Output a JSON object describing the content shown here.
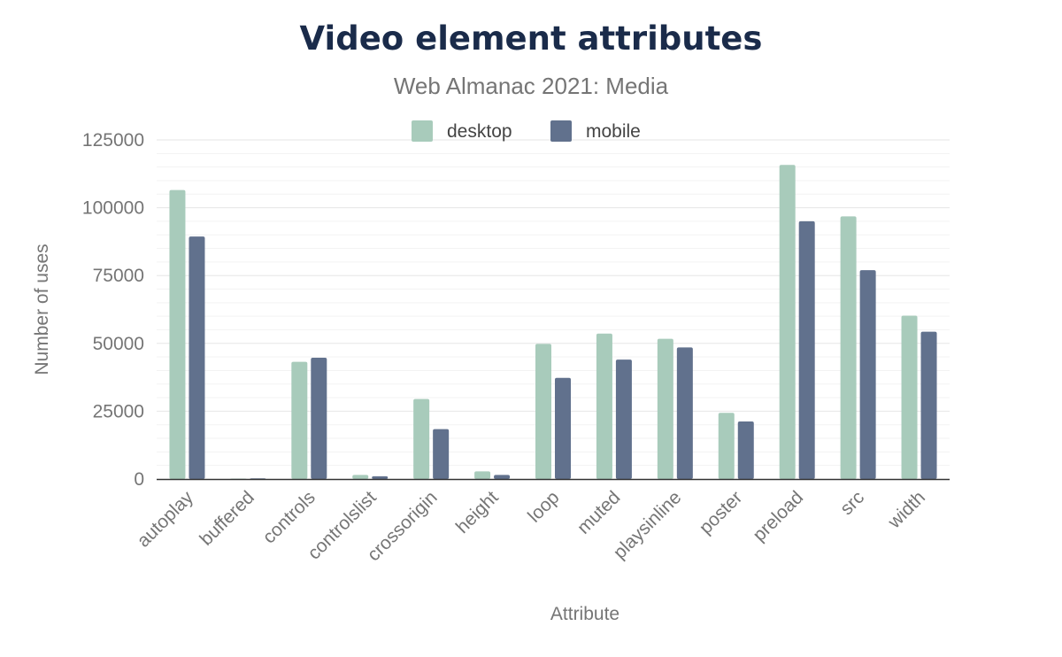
{
  "chart_data": {
    "type": "bar",
    "title": "Video element attributes",
    "subtitle": "Web Almanac 2021: Media",
    "xlabel": "Attribute",
    "ylabel": "Number of uses",
    "ylim": [
      0,
      125000
    ],
    "yticks": [
      0,
      25000,
      50000,
      75000,
      100000,
      125000
    ],
    "grid": true,
    "legend_position": "top",
    "categories": [
      "autoplay",
      "buffered",
      "controls",
      "controlslist",
      "crossorigin",
      "height",
      "loop",
      "muted",
      "playsinline",
      "poster",
      "preload",
      "src",
      "width"
    ],
    "series": [
      {
        "name": "desktop",
        "color": "#a8cbbb",
        "values": [
          106500,
          150,
          43200,
          1500,
          29500,
          2800,
          49800,
          53600,
          51700,
          24400,
          115800,
          96800,
          60200
        ]
      },
      {
        "name": "mobile",
        "color": "#61718d",
        "values": [
          89400,
          250,
          44700,
          1000,
          18400,
          1500,
          37300,
          44000,
          48500,
          21200,
          95000,
          77000,
          54300
        ]
      }
    ]
  }
}
